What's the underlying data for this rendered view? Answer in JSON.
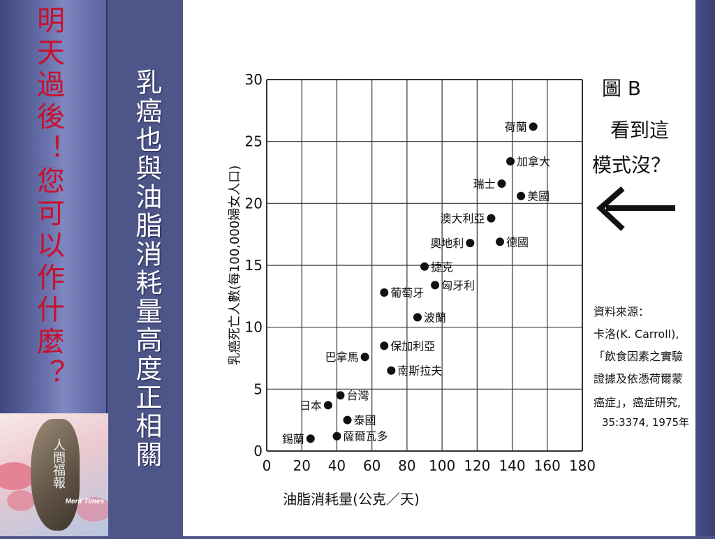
{
  "slide": {
    "side_title": "明天過後！您可以作什麼？",
    "main_title": "乳癌也與油脂消耗量高度正相關",
    "logo_text": "人間福報",
    "logo_brand": "Merit Times"
  },
  "figure": {
    "label": "圖 B",
    "question_line1": "看到這",
    "question_line2": "模式沒？",
    "arrow_icon": "left-arrow-icon",
    "source_lines": [
      "資料來源：",
      "卡洛(K. Carroll),",
      "「飲食因素之實驗",
      "證據及依憑荷爾蒙",
      "癌症」，癌症研究,",
      "35:3374, 1975年"
    ]
  },
  "chart_data": {
    "type": "scatter",
    "xlabel": "油脂消耗量(公克／天)",
    "ylabel": "乳癌死亡人數(每100,000婦女人口)",
    "xlim": [
      0,
      180
    ],
    "ylim": [
      0,
      30
    ],
    "x_ticks": [
      0,
      20,
      40,
      60,
      80,
      100,
      120,
      140,
      160,
      180
    ],
    "y_ticks": [
      0,
      5,
      10,
      15,
      20,
      25,
      30
    ],
    "grid": true,
    "points": [
      {
        "label": "荷蘭",
        "x": 152,
        "y": 26.2,
        "label_side": "left"
      },
      {
        "label": "加拿大",
        "x": 139,
        "y": 23.4,
        "label_side": "right"
      },
      {
        "label": "瑞士",
        "x": 134,
        "y": 21.6,
        "label_side": "left"
      },
      {
        "label": "美國",
        "x": 145,
        "y": 20.6,
        "label_side": "right"
      },
      {
        "label": "澳大利亞",
        "x": 128,
        "y": 18.8,
        "label_side": "left"
      },
      {
        "label": "奧地利",
        "x": 116,
        "y": 16.8,
        "label_side": "left"
      },
      {
        "label": "德國",
        "x": 133,
        "y": 16.9,
        "label_side": "right"
      },
      {
        "label": "捷克",
        "x": 90,
        "y": 14.9,
        "label_side": "right"
      },
      {
        "label": "葡萄牙",
        "x": 67,
        "y": 12.8,
        "label_side": "right"
      },
      {
        "label": "匈牙利",
        "x": 96,
        "y": 13.4,
        "label_side": "right"
      },
      {
        "label": "波蘭",
        "x": 86,
        "y": 10.8,
        "label_side": "right"
      },
      {
        "label": "保加利亞",
        "x": 67,
        "y": 8.5,
        "label_side": "right"
      },
      {
        "label": "巴拿馬",
        "x": 56,
        "y": 7.6,
        "label_side": "left"
      },
      {
        "label": "南斯拉夫",
        "x": 71,
        "y": 6.5,
        "label_side": "right"
      },
      {
        "label": "台灣",
        "x": 42,
        "y": 4.5,
        "label_side": "right"
      },
      {
        "label": "日本",
        "x": 35,
        "y": 3.7,
        "label_side": "left"
      },
      {
        "label": "泰國",
        "x": 46,
        "y": 2.5,
        "label_side": "right"
      },
      {
        "label": "錫蘭",
        "x": 25,
        "y": 1.0,
        "label_side": "left"
      },
      {
        "label": "薩爾瓦多",
        "x": 40,
        "y": 1.2,
        "label_side": "right"
      }
    ]
  }
}
